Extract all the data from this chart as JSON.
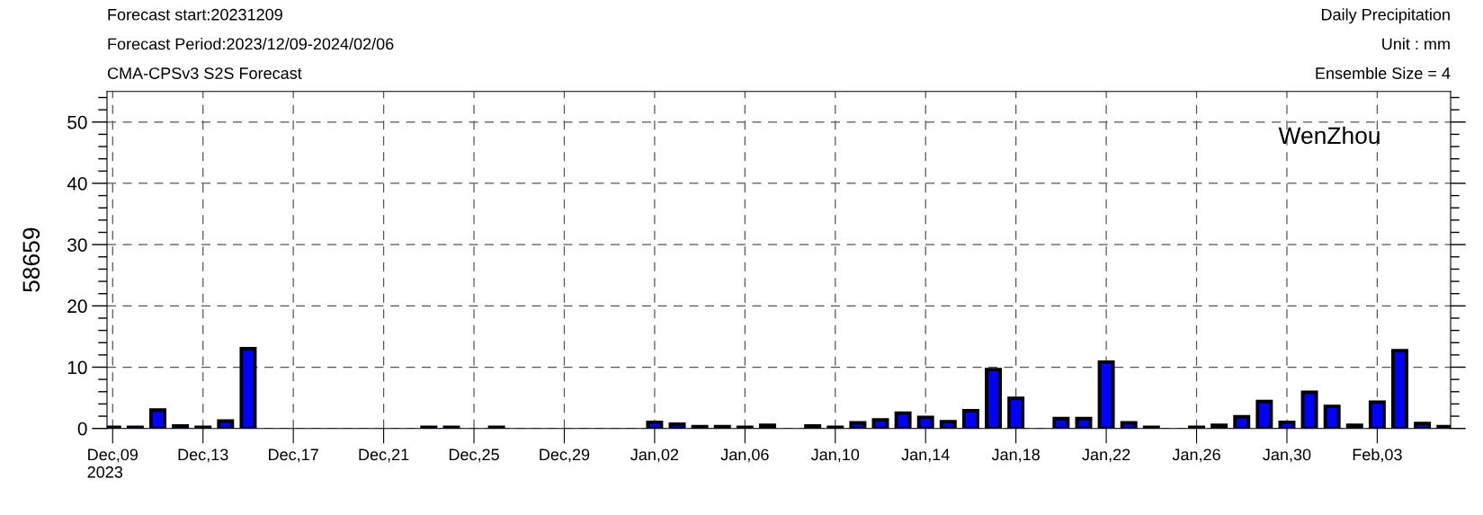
{
  "chart_data": {
    "type": "bar",
    "annotations": [
      "Forecast start:20231209",
      "Forecast Period:2023/12/09-2024/02/06",
      "CMA-CPSv3 S2S Forecast",
      "Daily Precipitation",
      "Unit : mm",
      "Ensemble Size = 4",
      "WenZhou"
    ],
    "ylabel": "58659",
    "x": [
      "2023-12-09",
      "2023-12-10",
      "2023-12-11",
      "2023-12-12",
      "2023-12-13",
      "2023-12-14",
      "2023-12-15",
      "2023-12-16",
      "2023-12-17",
      "2023-12-18",
      "2023-12-19",
      "2023-12-20",
      "2023-12-21",
      "2023-12-22",
      "2023-12-23",
      "2023-12-24",
      "2023-12-25",
      "2023-12-26",
      "2023-12-27",
      "2023-12-28",
      "2023-12-29",
      "2023-12-30",
      "2023-12-31",
      "2024-01-01",
      "2024-01-02",
      "2024-01-03",
      "2024-01-04",
      "2024-01-05",
      "2024-01-06",
      "2024-01-07",
      "2024-01-08",
      "2024-01-09",
      "2024-01-10",
      "2024-01-11",
      "2024-01-12",
      "2024-01-13",
      "2024-01-14",
      "2024-01-15",
      "2024-01-16",
      "2024-01-17",
      "2024-01-18",
      "2024-01-19",
      "2024-01-20",
      "2024-01-21",
      "2024-01-22",
      "2024-01-23",
      "2024-01-24",
      "2024-01-25",
      "2024-01-26",
      "2024-01-27",
      "2024-01-28",
      "2024-01-29",
      "2024-01-30",
      "2024-01-31",
      "2024-02-01",
      "2024-02-02",
      "2024-02-03",
      "2024-02-04",
      "2024-02-05",
      "2024-02-06"
    ],
    "series": [
      {
        "color": "#0000ff",
        "values": [
          0.2,
          0.2,
          3.0,
          0.4,
          0.2,
          1.2,
          13.0,
          0,
          0,
          0,
          0,
          0,
          0,
          0,
          0.2,
          0.2,
          0,
          0.2,
          0,
          0,
          0,
          0,
          0,
          0,
          1.0,
          0.7,
          0.3,
          0.3,
          0.2,
          0.5,
          0,
          0.4,
          0.2,
          0.9,
          1.4,
          2.5,
          1.8,
          1.1,
          2.9,
          9.6,
          4.9,
          0,
          1.6,
          1.6,
          10.8,
          0.9,
          0.2,
          0,
          0.2,
          0.5,
          1.9,
          4.4,
          1.0,
          5.9,
          3.6,
          0.5,
          4.3,
          12.7,
          0.8,
          0.3
        ]
      }
    ],
    "xlim": [
      "2023-12-08T18:00",
      "2024-02-06T06:00"
    ],
    "xticks": [
      {
        "value": "2023-12-09",
        "label": "Dec,09\n2023"
      },
      {
        "value": "2023-12-13",
        "label": "Dec,13"
      },
      {
        "value": "2023-12-17",
        "label": "Dec,17"
      },
      {
        "value": "2023-12-21",
        "label": "Dec,21"
      },
      {
        "value": "2023-12-25",
        "label": "Dec,25"
      },
      {
        "value": "2023-12-29",
        "label": "Dec,29"
      },
      {
        "value": "2024-01-02",
        "label": "Jan,02"
      },
      {
        "value": "2024-01-06",
        "label": "Jan,06"
      },
      {
        "value": "2024-01-10",
        "label": "Jan,10"
      },
      {
        "value": "2024-01-14",
        "label": "Jan,14"
      },
      {
        "value": "2024-01-18",
        "label": "Jan,18"
      },
      {
        "value": "2024-01-22",
        "label": "Jan,22"
      },
      {
        "value": "2024-01-26",
        "label": "Jan,26"
      },
      {
        "value": "2024-01-30",
        "label": "Jan,30"
      },
      {
        "value": "2024-02-03",
        "label": "Feb,03"
      }
    ],
    "ylim": [
      0,
      55
    ],
    "yticks": [
      0,
      10,
      20,
      30,
      40,
      50
    ],
    "grid": true
  }
}
